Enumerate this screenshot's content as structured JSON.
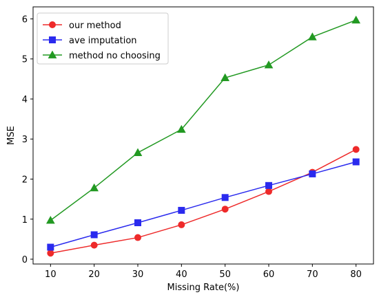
{
  "chart_data": {
    "type": "line",
    "title": "",
    "xlabel": "Missing Rate(%)",
    "ylabel": "MSE",
    "x": [
      10,
      20,
      30,
      40,
      50,
      60,
      70,
      80
    ],
    "xlim": [
      6,
      84
    ],
    "ylim": [
      -0.12,
      6.3
    ],
    "xticks": [
      10,
      20,
      30,
      40,
      50,
      60,
      70,
      80
    ],
    "yticks": [
      0,
      1,
      2,
      3,
      4,
      5,
      6
    ],
    "grid": false,
    "legend_position": "top-left",
    "series": [
      {
        "name": "our method",
        "color": "#ee2a2a",
        "marker": "circle",
        "values": [
          0.15,
          0.35,
          0.54,
          0.86,
          1.25,
          1.69,
          2.17,
          2.74
        ]
      },
      {
        "name": "ave imputation",
        "color": "#2a2aee",
        "marker": "square",
        "values": [
          0.3,
          0.61,
          0.91,
          1.22,
          1.54,
          1.84,
          2.13,
          2.43
        ]
      },
      {
        "name": "method no choosing",
        "color": "#229922",
        "marker": "triangle",
        "values": [
          0.97,
          1.78,
          2.66,
          3.24,
          4.53,
          4.85,
          5.55,
          5.97
        ]
      }
    ]
  }
}
